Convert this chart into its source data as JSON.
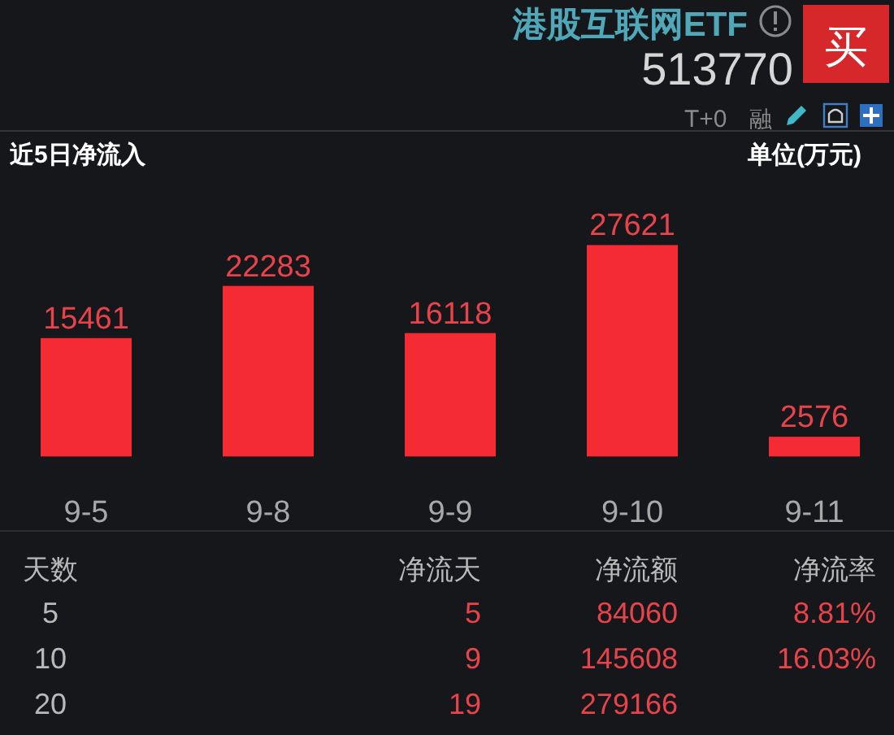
{
  "chart_data": [
    {
      "type": "other",
      "title": "港股互联网ETF",
      "subtitle": "513770",
      "annotations": [
        "买",
        "T+0",
        "融"
      ]
    },
    {
      "type": "bar",
      "title": "近5日净流入",
      "ylabel": "单位(万元)",
      "categories": [
        "9-5",
        "9-8",
        "9-9",
        "9-10",
        "9-11"
      ],
      "values": [
        15461,
        22283,
        16118,
        27621,
        2576
      ],
      "color": "#f42a35",
      "data_labels": true
    },
    {
      "type": "other",
      "annotations": [
        "天数",
        "净流天",
        "净流额",
        "净流率",
        "5",
        "5",
        "84060",
        "8.81%",
        "10",
        "9",
        "145608",
        "16.03%",
        "20",
        "19",
        "279166"
      ]
    }
  ]
}
